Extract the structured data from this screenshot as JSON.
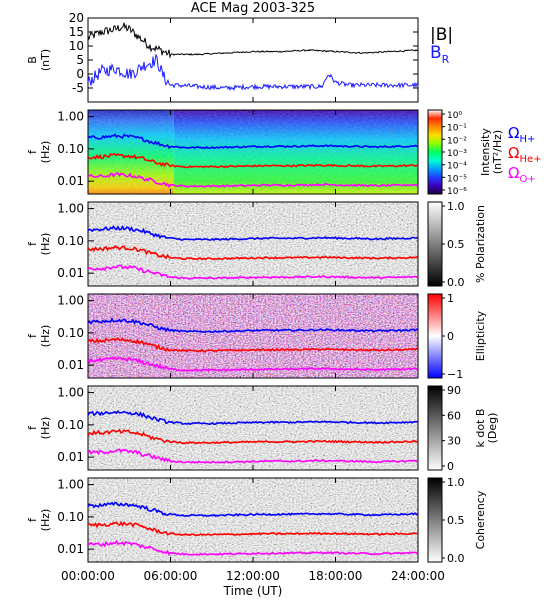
{
  "title": "ACE Mag 2003-325",
  "colors": {
    "B_total": "#000000",
    "B_R": "#1a1aff",
    "omega_H": "#0000ff",
    "omega_He": "#ff0000",
    "omega_O": "#ff00ff"
  },
  "chart_data": [
    {
      "type": "line",
      "panel": "magnetic-field",
      "ylabel": "B",
      "yunit": "(nT)",
      "ylim": [
        -10,
        20
      ],
      "yticks": [
        -5,
        0,
        5,
        10,
        15,
        20
      ],
      "series": [
        {
          "name": "|B|",
          "x_hours": [
            0,
            1,
            2,
            2.5,
            3,
            3.5,
            4,
            4.5,
            5,
            5.5,
            6,
            6.5,
            8,
            10,
            12,
            14,
            16,
            18,
            20,
            22,
            24
          ],
          "values": [
            13,
            15,
            16,
            17,
            16,
            14,
            12,
            10,
            9,
            8,
            7,
            7,
            7,
            7.5,
            8,
            8,
            8.5,
            8,
            7.5,
            8,
            8.5
          ]
        },
        {
          "name": "B_R",
          "x_hours": [
            0,
            0.5,
            1,
            2,
            2.5,
            3,
            3.5,
            4,
            4.5,
            5,
            5.5,
            6,
            6.5,
            8,
            10,
            12,
            14,
            16,
            17,
            17.5,
            18,
            19,
            20,
            22,
            24
          ],
          "values": [
            -3,
            -1,
            1,
            2,
            1,
            0,
            1,
            3,
            4,
            5,
            -1,
            -4,
            -4,
            -4.5,
            -5,
            -4.5,
            -4.5,
            -4.5,
            -4.5,
            0,
            -3,
            -4,
            -4,
            -4,
            -4
          ]
        }
      ]
    },
    {
      "type": "heatmap",
      "panel": "intensity",
      "ylabel": "f",
      "yunit": "(Hz)",
      "yticks": [
        "1.00",
        "0.10",
        "0.01"
      ],
      "colorbar_label": "Intensity",
      "colorbar_unit": "(nT²/Hz)",
      "colorbar_ticks": [
        "10⁰",
        "10⁻¹",
        "10⁻²",
        "10⁻³",
        "10⁻⁴",
        "10⁻⁵",
        "10⁻⁶"
      ],
      "colorbar_colors": [
        "#ffffff",
        "#ff2a00",
        "#ff8c00",
        "#ffe000",
        "#8cff00",
        "#00ff60",
        "#00ffd0",
        "#00a0ff",
        "#2040ff",
        "#3a00c0",
        "#200040"
      ]
    },
    {
      "type": "heatmap",
      "panel": "polarization",
      "ylabel": "f",
      "yunit": "(Hz)",
      "yticks": [
        "1.00",
        "0.10",
        "0.01"
      ],
      "colorbar_label": "% Polarization",
      "colorbar_ticks": [
        "1.0",
        "0.5",
        "0.0"
      ],
      "colorbar_colors": [
        "#ffffff",
        "#000000"
      ]
    },
    {
      "type": "heatmap",
      "panel": "ellipticity",
      "ylabel": "f",
      "yunit": "(Hz)",
      "yticks": [
        "1.00",
        "0.10",
        "0.01"
      ],
      "colorbar_label": "Ellipticity",
      "colorbar_ticks": [
        "1",
        "0",
        "−1"
      ],
      "colorbar_colors": [
        "#ff0000",
        "#ffffff",
        "#0000ff"
      ]
    },
    {
      "type": "heatmap",
      "panel": "k-dot-b",
      "ylabel": "f",
      "yunit": "(Hz)",
      "yticks": [
        "1.00",
        "0.10",
        "0.01"
      ],
      "colorbar_label": "k dot B",
      "colorbar_unit": "(Deg)",
      "colorbar_ticks": [
        "90",
        "60",
        "30",
        "0"
      ],
      "colorbar_colors": [
        "#000000",
        "#ffffff"
      ]
    },
    {
      "type": "heatmap",
      "panel": "coherency",
      "ylabel": "f",
      "yunit": "(Hz)",
      "yticks": [
        "1.00",
        "0.10",
        "0.01"
      ],
      "colorbar_label": "Coherency",
      "colorbar_ticks": [
        "1.0",
        "0.5",
        "0.0"
      ],
      "colorbar_colors": [
        "#000000",
        "#ffffff"
      ]
    }
  ],
  "gyrofrequency_lines": {
    "x_hours": [
      0,
      1,
      2,
      3,
      3.5,
      4,
      4.5,
      5,
      5.5,
      6,
      7,
      9,
      11,
      13,
      15,
      17,
      19,
      21,
      23,
      24
    ],
    "omega_H_hz": [
      0.22,
      0.23,
      0.25,
      0.24,
      0.22,
      0.2,
      0.17,
      0.15,
      0.13,
      0.12,
      0.11,
      0.11,
      0.115,
      0.12,
      0.12,
      0.125,
      0.12,
      0.115,
      0.12,
      0.125
    ],
    "omega_He_hz": [
      0.055,
      0.057,
      0.062,
      0.06,
      0.055,
      0.05,
      0.042,
      0.037,
      0.033,
      0.03,
      0.028,
      0.028,
      0.029,
      0.03,
      0.03,
      0.031,
      0.03,
      0.029,
      0.03,
      0.031
    ],
    "omega_O_hz": [
      0.014,
      0.014,
      0.016,
      0.015,
      0.014,
      0.012,
      0.011,
      0.0095,
      0.0085,
      0.0075,
      0.007,
      0.007,
      0.0072,
      0.0075,
      0.0075,
      0.0078,
      0.0075,
      0.0072,
      0.0075,
      0.0078
    ]
  },
  "legend": {
    "B_total": "|B|",
    "B_R_base": "B",
    "B_R_sub": "R",
    "omega_H_sub": "H+",
    "omega_He_sub": "He+",
    "omega_O_sub": "O+",
    "omega_symbol": "Ω"
  },
  "x_axis": {
    "label": "Time (UT)",
    "ticks": [
      "00:00:00",
      "06:00:00",
      "12:00:00",
      "18:00:00",
      "24:00:00"
    ]
  }
}
